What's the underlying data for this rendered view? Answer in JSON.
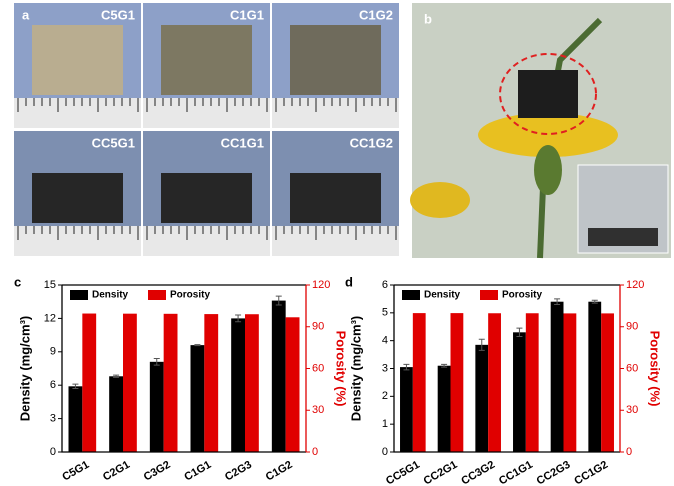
{
  "panel_a": {
    "label": "a",
    "samples": [
      "C5G1",
      "C1G1",
      "C1G2",
      "CC5G1",
      "CC1G1",
      "CC1G2"
    ]
  },
  "panel_b": {
    "label": "b"
  },
  "chart_data": [
    {
      "type": "bar",
      "panel": "c",
      "categories": [
        "C5G1",
        "C2G1",
        "C3G2",
        "C1G1",
        "C2G3",
        "C1G2"
      ],
      "ylabel": "Density (mg/cm³)",
      "y2label": "Porosity (%)",
      "ylim": [
        0,
        15
      ],
      "yticks": [
        0,
        3,
        6,
        9,
        12,
        15
      ],
      "y2lim": [
        0,
        120
      ],
      "y2ticks": [
        0,
        30,
        60,
        90,
        120
      ],
      "legend": "upper left",
      "series": [
        {
          "name": "Density",
          "color": "#000000",
          "values": [
            5.9,
            6.8,
            8.1,
            9.6,
            12.0,
            13.6
          ],
          "errors": [
            0.2,
            0.1,
            0.3,
            0.05,
            0.3,
            0.4
          ]
        },
        {
          "name": "Porosity",
          "color": "#e00000",
          "axis": "y2",
          "values": [
            99.5,
            99.4,
            99.3,
            99.1,
            99.0,
            96.8
          ]
        }
      ]
    },
    {
      "type": "bar",
      "panel": "d",
      "categories": [
        "CC5G1",
        "CC2G1",
        "CC3G2",
        "CC1G1",
        "CC2G3",
        "CC1G2"
      ],
      "ylabel": "Density (mg/cm³)",
      "y2label": "Porosity (%)",
      "ylim": [
        0,
        6
      ],
      "yticks": [
        0,
        1,
        2,
        3,
        4,
        5,
        6
      ],
      "y2lim": [
        0,
        120
      ],
      "y2ticks": [
        0,
        30,
        60,
        90,
        120
      ],
      "legend": "upper left",
      "series": [
        {
          "name": "Density",
          "color": "#000000",
          "values": [
            3.05,
            3.1,
            3.85,
            4.3,
            5.4,
            5.4
          ],
          "errors": [
            0.1,
            0.05,
            0.2,
            0.15,
            0.1,
            0.05
          ]
        },
        {
          "name": "Porosity",
          "color": "#e00000",
          "axis": "y2",
          "values": [
            99.8,
            99.8,
            99.7,
            99.7,
            99.6,
            99.6
          ]
        }
      ]
    }
  ]
}
